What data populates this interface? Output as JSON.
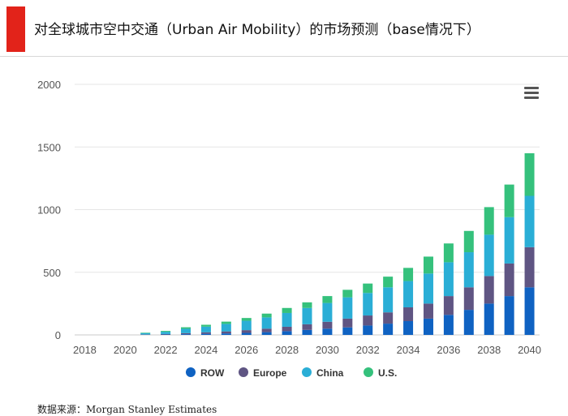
{
  "title": "对全球城市空中交通（Urban Air Mobility）的市场预测（base情况下）",
  "source": "数据来源：Morgan Stanley Estimates",
  "icons": {
    "menu": "hamburger-menu-icon"
  },
  "colors": {
    "accent": "#e2231a",
    "ROW": "#0f62c2",
    "Europe": "#5f5583",
    "China": "#2aaed6",
    "U.S.": "#35c17c"
  },
  "chart_data": {
    "type": "bar",
    "stacked": true,
    "title": "",
    "xlabel": "",
    "ylabel": "",
    "ylim": [
      0,
      2000
    ],
    "yticks": [
      0,
      500,
      1000,
      1500,
      2000
    ],
    "xticks": [
      "2018",
      "2020",
      "2022",
      "2024",
      "2026",
      "2028",
      "2030",
      "2032",
      "2034",
      "2036",
      "2038",
      "2040"
    ],
    "categories": [
      "2018",
      "2019",
      "2020",
      "2021",
      "2022",
      "2023",
      "2024",
      "2025",
      "2026",
      "2027",
      "2028",
      "2029",
      "2030",
      "2031",
      "2032",
      "2033",
      "2034",
      "2035",
      "2036",
      "2037",
      "2038",
      "2039",
      "2040"
    ],
    "series": [
      {
        "name": "ROW",
        "values": [
          0,
          0,
          0,
          2,
          3,
          6,
          9,
          12,
          16,
          22,
          30,
          40,
          50,
          60,
          75,
          90,
          110,
          130,
          160,
          200,
          250,
          310,
          380
        ]
      },
      {
        "name": "Europe",
        "values": [
          0,
          0,
          0,
          2,
          4,
          8,
          12,
          16,
          22,
          28,
          35,
          45,
          55,
          70,
          80,
          90,
          110,
          120,
          150,
          180,
          220,
          260,
          320
        ]
      },
      {
        "name": "China",
        "values": [
          0,
          0,
          0,
          10,
          18,
          35,
          45,
          60,
          75,
          90,
          110,
          130,
          150,
          170,
          180,
          200,
          210,
          240,
          270,
          280,
          330,
          370,
          410
        ]
      },
      {
        "name": "U.S.",
        "values": [
          0,
          0,
          0,
          4,
          7,
          12,
          15,
          18,
          22,
          30,
          40,
          45,
          55,
          60,
          75,
          85,
          105,
          135,
          150,
          170,
          220,
          260,
          340
        ]
      }
    ],
    "grid": true,
    "legend_position": "bottom"
  }
}
